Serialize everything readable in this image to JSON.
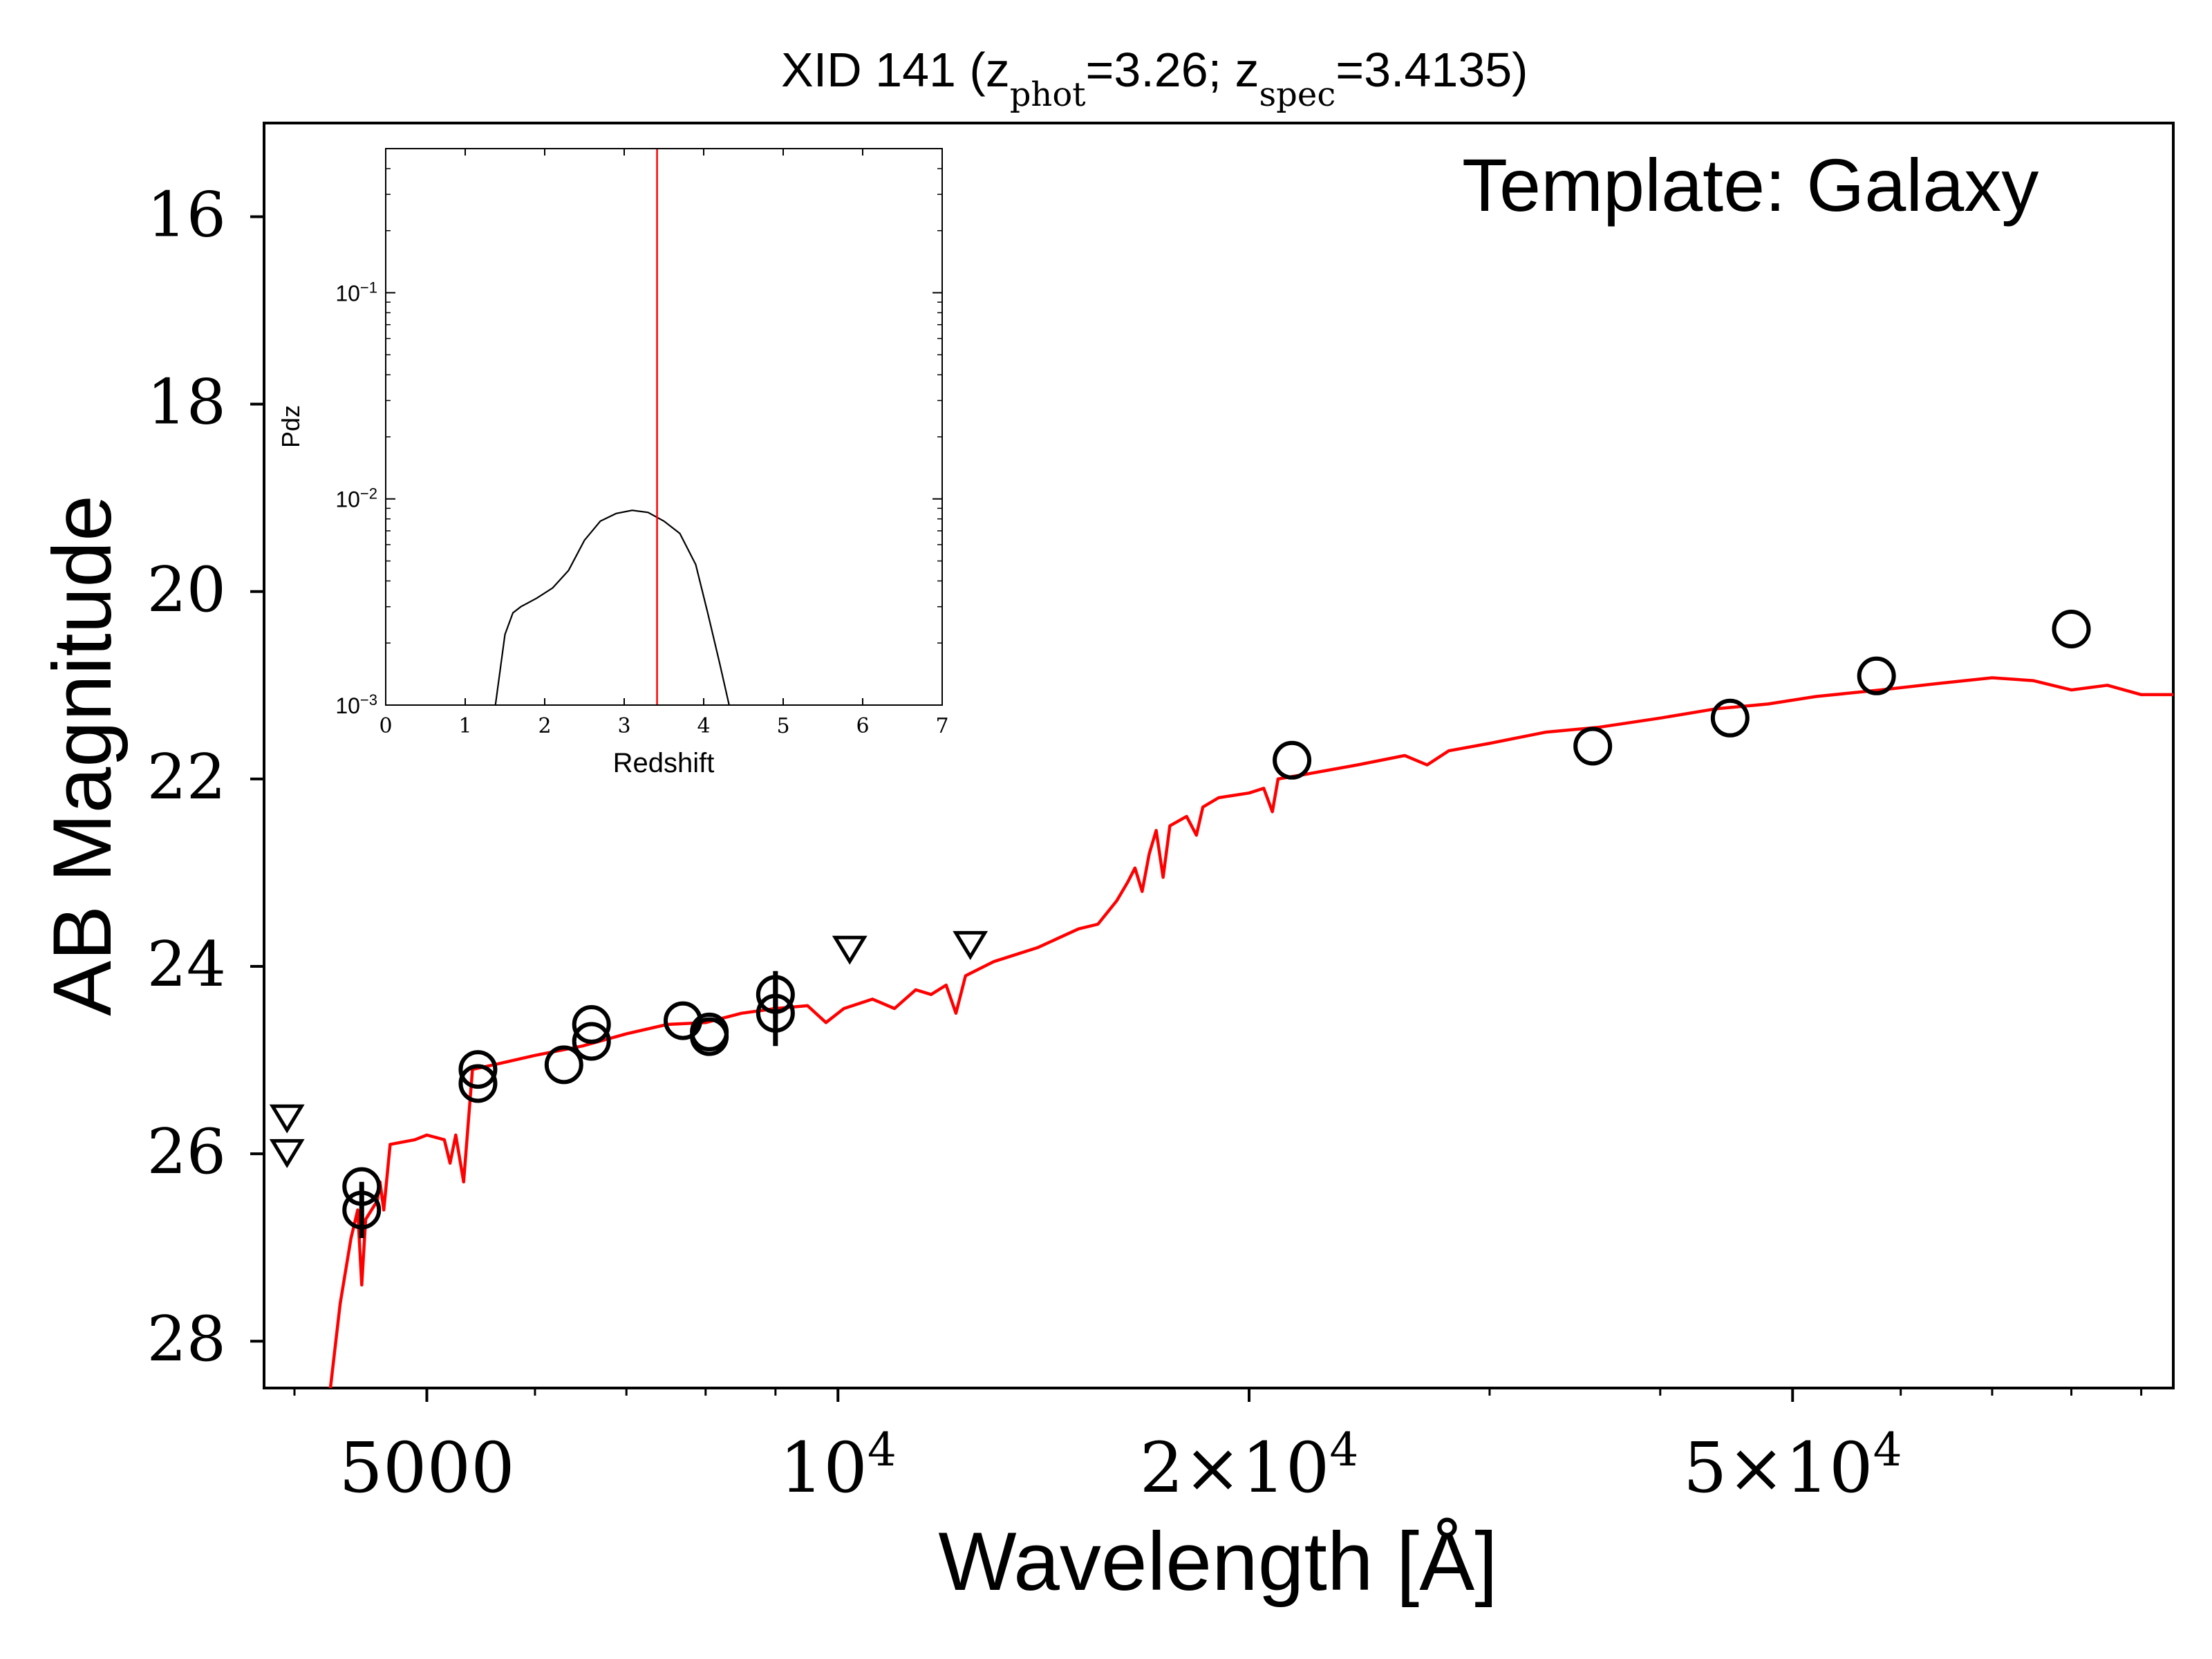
{
  "chart_data": [
    {
      "type": "scatter",
      "title_parts": [
        "XID 141 (z",
        "phot",
        "=3.26; z",
        "spec",
        "=3.4135)"
      ],
      "template_label": "Template: Galaxy",
      "xlabel": "Wavelength [Å]",
      "ylabel": "AB Magnitude",
      "xscale": "log",
      "xlim": [
        3800,
        95000
      ],
      "ylim": [
        28.5,
        15.0
      ],
      "y_inverted": true,
      "grid": false,
      "y_ticks": [
        16,
        18,
        20,
        22,
        24,
        26,
        28
      ],
      "y_tick_labels": [
        "16",
        "18",
        "20",
        "22",
        "24",
        "26",
        "28"
      ],
      "x_ticks": [
        {
          "value": 5000,
          "base": "5000",
          "sup": ""
        },
        {
          "value": 10000,
          "base": "10",
          "sup": "4"
        },
        {
          "value": 20000,
          "base": "2×10",
          "sup": "4"
        },
        {
          "value": 50000,
          "base": "5×10",
          "sup": "4"
        }
      ],
      "x_minor_ticks": [
        4000,
        6000,
        7000,
        8000,
        9000,
        30000,
        40000,
        60000,
        70000,
        80000,
        90000
      ],
      "colors": {
        "model": "#ff0000",
        "points": "#000000"
      },
      "series": [
        {
          "marker": "circle",
          "points": [
            {
              "x": 4480,
              "y": 26.35
            },
            {
              "x": 4480,
              "y": 26.6,
              "yerr": 0.3
            },
            {
              "x": 5450,
              "y": 25.1
            },
            {
              "x": 5450,
              "y": 25.25
            },
            {
              "x": 6300,
              "y": 25.05
            },
            {
              "x": 6600,
              "y": 24.8
            },
            {
              "x": 6600,
              "y": 24.62
            },
            {
              "x": 7700,
              "y": 24.58
            },
            {
              "x": 8050,
              "y": 24.7
            },
            {
              "x": 8050,
              "y": 24.75
            },
            {
              "x": 9000,
              "y": 24.5,
              "yerr": 0.35
            },
            {
              "x": 9000,
              "y": 24.3,
              "yerr": 0.25
            },
            {
              "x": 21500,
              "y": 21.8
            },
            {
              "x": 35700,
              "y": 21.65
            },
            {
              "x": 45000,
              "y": 21.35
            },
            {
              "x": 57600,
              "y": 20.9
            },
            {
              "x": 80000,
              "y": 20.4
            }
          ]
        },
        {
          "marker": "triangle-down",
          "points": [
            {
              "x": 3950,
              "y": 25.6
            },
            {
              "x": 3950,
              "y": 25.97
            },
            {
              "x": 10200,
              "y": 23.8
            },
            {
              "x": 12500,
              "y": 23.75
            }
          ]
        },
        {
          "marker": "line",
          "points": [
            {
              "x": 4250,
              "y": 28.5
            },
            {
              "x": 4320,
              "y": 27.6
            },
            {
              "x": 4400,
              "y": 26.9
            },
            {
              "x": 4450,
              "y": 26.6
            },
            {
              "x": 4480,
              "y": 27.4
            },
            {
              "x": 4510,
              "y": 26.7
            },
            {
              "x": 4600,
              "y": 26.5
            },
            {
              "x": 4620,
              "y": 26.3
            },
            {
              "x": 4650,
              "y": 26.6
            },
            {
              "x": 4700,
              "y": 25.9
            },
            {
              "x": 4900,
              "y": 25.85
            },
            {
              "x": 5000,
              "y": 25.8
            },
            {
              "x": 5150,
              "y": 25.85
            },
            {
              "x": 5200,
              "y": 26.1
            },
            {
              "x": 5250,
              "y": 25.8
            },
            {
              "x": 5320,
              "y": 26.3
            },
            {
              "x": 5400,
              "y": 25.1
            },
            {
              "x": 5600,
              "y": 25.05
            },
            {
              "x": 6000,
              "y": 24.95
            },
            {
              "x": 6500,
              "y": 24.85
            },
            {
              "x": 7000,
              "y": 24.72
            },
            {
              "x": 7500,
              "y": 24.62
            },
            {
              "x": 8000,
              "y": 24.6
            },
            {
              "x": 8500,
              "y": 24.5
            },
            {
              "x": 9000,
              "y": 24.45
            },
            {
              "x": 9500,
              "y": 24.42
            },
            {
              "x": 9800,
              "y": 24.6
            },
            {
              "x": 10100,
              "y": 24.45
            },
            {
              "x": 10600,
              "y": 24.35
            },
            {
              "x": 11000,
              "y": 24.45
            },
            {
              "x": 11400,
              "y": 24.25
            },
            {
              "x": 11700,
              "y": 24.3
            },
            {
              "x": 12000,
              "y": 24.2
            },
            {
              "x": 12200,
              "y": 24.5
            },
            {
              "x": 12400,
              "y": 24.1
            },
            {
              "x": 13000,
              "y": 23.95
            },
            {
              "x": 14000,
              "y": 23.8
            },
            {
              "x": 15000,
              "y": 23.6
            },
            {
              "x": 15500,
              "y": 23.55
            },
            {
              "x": 16000,
              "y": 23.3
            },
            {
              "x": 16300,
              "y": 23.1
            },
            {
              "x": 16500,
              "y": 22.95
            },
            {
              "x": 16700,
              "y": 23.2
            },
            {
              "x": 16900,
              "y": 22.8
            },
            {
              "x": 17100,
              "y": 22.55
            },
            {
              "x": 17300,
              "y": 23.05
            },
            {
              "x": 17500,
              "y": 22.5
            },
            {
              "x": 18000,
              "y": 22.4
            },
            {
              "x": 18300,
              "y": 22.6
            },
            {
              "x": 18500,
              "y": 22.3
            },
            {
              "x": 19000,
              "y": 22.2
            },
            {
              "x": 20000,
              "y": 22.15
            },
            {
              "x": 20500,
              "y": 22.1
            },
            {
              "x": 20800,
              "y": 22.35
            },
            {
              "x": 21000,
              "y": 22.0
            },
            {
              "x": 22000,
              "y": 21.95
            },
            {
              "x": 24000,
              "y": 21.85
            },
            {
              "x": 26000,
              "y": 21.75
            },
            {
              "x": 27000,
              "y": 21.85
            },
            {
              "x": 28000,
              "y": 21.7
            },
            {
              "x": 30000,
              "y": 21.62
            },
            {
              "x": 33000,
              "y": 21.5
            },
            {
              "x": 36000,
              "y": 21.45
            },
            {
              "x": 40000,
              "y": 21.35
            },
            {
              "x": 44000,
              "y": 21.25
            },
            {
              "x": 48000,
              "y": 21.2
            },
            {
              "x": 52000,
              "y": 21.12
            },
            {
              "x": 58000,
              "y": 21.05
            },
            {
              "x": 64000,
              "y": 20.98
            },
            {
              "x": 70000,
              "y": 20.92
            },
            {
              "x": 75000,
              "y": 20.95
            },
            {
              "x": 80000,
              "y": 21.05
            },
            {
              "x": 85000,
              "y": 21.0
            },
            {
              "x": 90000,
              "y": 21.1
            },
            {
              "x": 95000,
              "y": 21.1
            }
          ]
        }
      ]
    },
    {
      "type": "line",
      "xlabel": "Redshift",
      "ylabel": "Pdz",
      "xlim": [
        0,
        7
      ],
      "ylim": [
        0.001,
        0.5
      ],
      "yscale": "log",
      "x_ticks": [
        0,
        1,
        2,
        3,
        4,
        5,
        6,
        7
      ],
      "y_ticks": [
        {
          "value": 0.001,
          "base": "10",
          "sup": "−3"
        },
        {
          "value": 0.01,
          "base": "10",
          "sup": "−2"
        },
        {
          "value": 0.1,
          "base": "10",
          "sup": "−1"
        }
      ],
      "vline": {
        "x": 3.4135,
        "color": "#ff0000"
      },
      "x": [
        1.38,
        1.5,
        1.6,
        1.7,
        1.9,
        2.1,
        2.3,
        2.5,
        2.7,
        2.9,
        3.1,
        3.3,
        3.5,
        3.7,
        3.9,
        4.05,
        4.2,
        4.32
      ],
      "y": [
        0.001,
        0.0022,
        0.0028,
        0.003,
        0.0033,
        0.0037,
        0.0045,
        0.0063,
        0.0078,
        0.0085,
        0.0088,
        0.0086,
        0.0078,
        0.0068,
        0.0048,
        0.0028,
        0.0016,
        0.001
      ]
    }
  ]
}
